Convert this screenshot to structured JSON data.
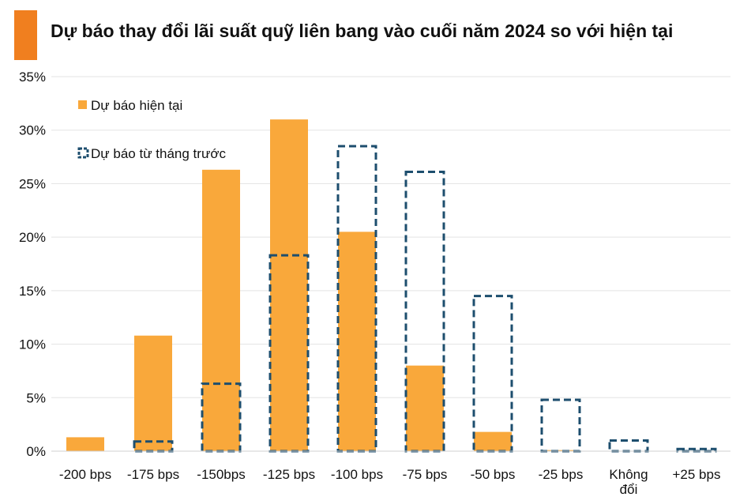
{
  "chart_data": {
    "type": "bar",
    "title": "Dự báo thay đổi lãi suất quỹ liên bang vào cuối năm 2024 so với hiện tại",
    "categories": [
      "-200 bps",
      "-175 bps",
      "-150bps",
      "-125 bps",
      "-100 bps",
      "-75 bps",
      "-50 bps",
      "-25 bps",
      "Không đổi",
      "+25 bps"
    ],
    "series": [
      {
        "name": "Dự báo hiện tại",
        "style": "solid",
        "color": "#f9a83b",
        "values": [
          1.3,
          10.8,
          26.3,
          31.0,
          20.5,
          8.0,
          1.8,
          0.1,
          0.0,
          0.0
        ]
      },
      {
        "name": "Dự báo từ tháng trước",
        "style": "dashed-outline",
        "color": "#1d4e6e",
        "values": [
          0.0,
          0.9,
          6.3,
          18.3,
          28.5,
          26.1,
          14.5,
          4.8,
          1.0,
          0.2
        ]
      }
    ],
    "ylim": [
      0,
      35
    ],
    "yticks": [
      "0%",
      "5%",
      "10%",
      "15%",
      "20%",
      "25%",
      "30%",
      "35%"
    ],
    "ytick_values": [
      0,
      5,
      10,
      15,
      20,
      25,
      30,
      35
    ],
    "grid": true,
    "legend": "top-left",
    "accent_color": "#f07f1f"
  }
}
